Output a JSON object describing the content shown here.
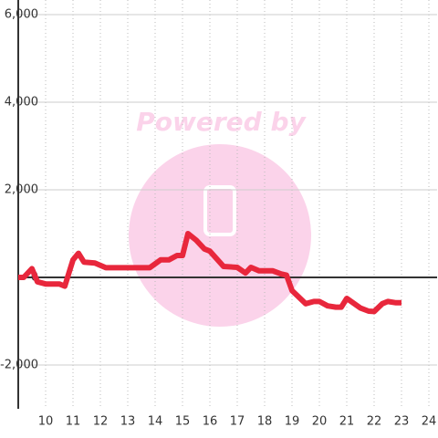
{
  "chart_data": {
    "type": "line",
    "watermark": "Powered by",
    "x": [
      9.0,
      9.2,
      9.5,
      9.7,
      10.0,
      10.5,
      10.7,
      11.0,
      11.2,
      11.4,
      11.8,
      12.2,
      13.0,
      13.8,
      14.2,
      14.5,
      14.8,
      15.0,
      15.2,
      15.5,
      15.8,
      16.0,
      16.5,
      17.0,
      17.3,
      17.5,
      17.8,
      18.3,
      18.6,
      18.8,
      19.0,
      19.5,
      19.8,
      20.0,
      20.3,
      20.6,
      20.8,
      21.0,
      21.5,
      21.8,
      22.0,
      22.3,
      22.5,
      22.8,
      23.0
    ],
    "series": [
      {
        "color": "#e8273c",
        "values": [
          0,
          0,
          200,
          -100,
          -150,
          -150,
          -200,
          400,
          550,
          350,
          330,
          220,
          220,
          220,
          400,
          400,
          500,
          500,
          1000,
          850,
          650,
          600,
          250,
          230,
          100,
          230,
          150,
          150,
          80,
          50,
          -300,
          -600,
          -550,
          -550,
          -650,
          -680,
          -680,
          -480,
          -700,
          -770,
          -780,
          -600,
          -550,
          -580,
          -580
        ]
      }
    ],
    "xlim": [
      9,
      24.3
    ],
    "xticks": [
      10,
      11,
      12,
      13,
      14,
      15,
      16,
      17,
      18,
      19,
      20,
      21,
      22,
      23,
      24
    ],
    "ylim": [
      -3000,
      6000
    ],
    "yticks": [
      {
        "value": 6000,
        "label": "6,000"
      },
      {
        "value": 4000,
        "label": "4,000"
      },
      {
        "value": 2000,
        "label": "2,000"
      },
      0,
      {
        "value": -2000,
        "label": "-2,000"
      }
    ],
    "grid": true
  }
}
